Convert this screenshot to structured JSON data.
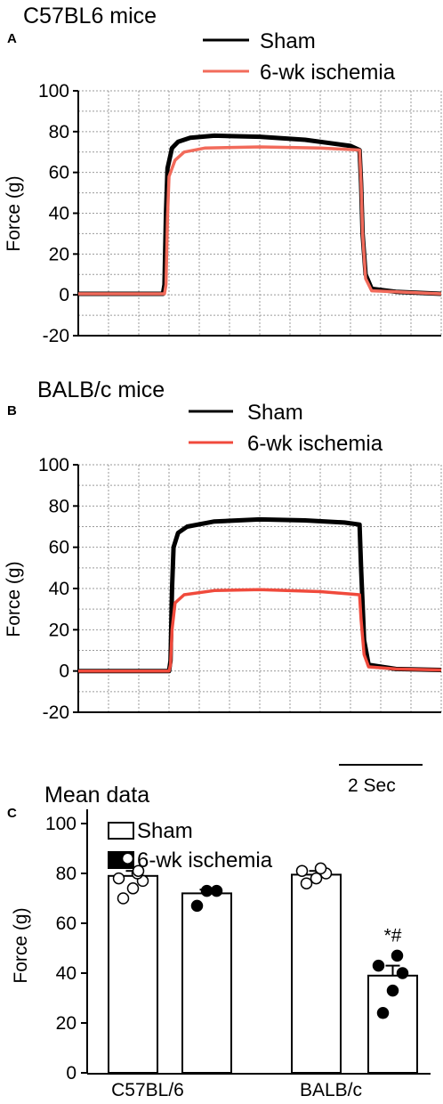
{
  "chart_data": [
    {
      "panel_letter": "A",
      "type": "line",
      "title": "C57BL6 mice",
      "ylabel": "Force (g)",
      "ylim": [
        -20,
        100
      ],
      "yticks": [
        "100",
        "80",
        "60",
        "40",
        "20",
        "0",
        "-20"
      ],
      "grid": true,
      "legend_position": "top-right",
      "x_unit": "Sec",
      "xlim": [
        0,
        12
      ],
      "series": [
        {
          "name": "Sham",
          "color": "#000000",
          "points": [
            [
              0,
              0.5
            ],
            [
              2.8,
              0.5
            ],
            [
              2.85,
              5
            ],
            [
              2.9,
              40
            ],
            [
              2.95,
              62
            ],
            [
              3.1,
              72
            ],
            [
              3.3,
              75
            ],
            [
              3.7,
              77
            ],
            [
              4.5,
              78
            ],
            [
              6,
              77.5
            ],
            [
              7.5,
              76
            ],
            [
              9,
              73
            ],
            [
              9.3,
              71
            ],
            [
              9.35,
              55
            ],
            [
              9.4,
              30
            ],
            [
              9.5,
              10
            ],
            [
              9.7,
              3
            ],
            [
              10.5,
              1.5
            ],
            [
              12,
              0.5
            ]
          ]
        },
        {
          "name": "6-wk ischemia",
          "color": "#f26b5b",
          "points": [
            [
              0,
              0.5
            ],
            [
              2.85,
              0.5
            ],
            [
              2.9,
              5
            ],
            [
              2.95,
              38
            ],
            [
              3.0,
              58
            ],
            [
              3.2,
              66
            ],
            [
              3.5,
              70
            ],
            [
              4.2,
              72
            ],
            [
              6,
              72.5
            ],
            [
              8,
              72
            ],
            [
              9.3,
              71
            ],
            [
              9.35,
              55
            ],
            [
              9.4,
              30
            ],
            [
              9.5,
              8
            ],
            [
              9.7,
              2
            ],
            [
              10.5,
              1.5
            ],
            [
              12,
              0.5
            ]
          ]
        }
      ]
    },
    {
      "panel_letter": "B",
      "type": "line",
      "title": "BALB/c mice",
      "ylabel": "Force (g)",
      "ylim": [
        -20,
        100
      ],
      "yticks": [
        "100",
        "80",
        "60",
        "40",
        "20",
        "0",
        "-20"
      ],
      "grid": true,
      "legend_position": "top-right",
      "scale_bar": "2 Sec",
      "x_unit": "Sec",
      "xlim": [
        0,
        12
      ],
      "series": [
        {
          "name": "Sham",
          "color": "#000000",
          "points": [
            [
              0,
              0
            ],
            [
              3.0,
              0
            ],
            [
              3.05,
              5
            ],
            [
              3.1,
              40
            ],
            [
              3.15,
              60
            ],
            [
              3.3,
              67
            ],
            [
              3.6,
              70
            ],
            [
              4.5,
              72.5
            ],
            [
              6,
              73.5
            ],
            [
              7.5,
              73
            ],
            [
              8.8,
              72
            ],
            [
              9.3,
              71
            ],
            [
              9.35,
              50
            ],
            [
              9.45,
              15
            ],
            [
              9.6,
              3
            ],
            [
              10.5,
              1
            ],
            [
              12,
              0.5
            ]
          ]
        },
        {
          "name": "6-wk ischemia",
          "color": "#f04a3c",
          "points": [
            [
              0,
              0
            ],
            [
              3.0,
              0
            ],
            [
              3.05,
              3
            ],
            [
              3.1,
              20
            ],
            [
              3.2,
              33
            ],
            [
              3.5,
              37
            ],
            [
              4.5,
              39
            ],
            [
              6,
              39.5
            ],
            [
              8,
              38.5
            ],
            [
              9.3,
              37
            ],
            [
              9.35,
              25
            ],
            [
              9.45,
              8
            ],
            [
              9.6,
              2
            ],
            [
              10.5,
              1
            ],
            [
              12,
              0.5
            ]
          ]
        }
      ]
    },
    {
      "panel_letter": "C",
      "type": "bar",
      "title": "Mean data",
      "ylabel": "Force (g)",
      "ylim": [
        0,
        100
      ],
      "yticks": [
        "100",
        "80",
        "60",
        "40",
        "20",
        "0"
      ],
      "categories": [
        "C57BL/6",
        "BALB/c"
      ],
      "legend_position": "top-left",
      "series": [
        {
          "name": "Sham",
          "fill": "#ffffff",
          "values": [
            79,
            79.5
          ],
          "sem": [
            2,
            1.5
          ],
          "points": [
            [
              70,
              74,
              77,
              78,
              80,
              81,
              86
            ],
            [
              76,
              78,
              80,
              81,
              82
            ]
          ]
        },
        {
          "name": "6-wk ischemia",
          "fill": "#000000",
          "values": [
            72,
            39
          ],
          "sem": [
            1.5,
            4
          ],
          "points": [
            [
              67,
              73,
              73
            ],
            [
              24,
              33,
              40,
              43,
              47
            ]
          ]
        }
      ],
      "annotations": [
        {
          "category": "BALB/c",
          "series": "6-wk ischemia",
          "text": "*#"
        }
      ]
    }
  ]
}
